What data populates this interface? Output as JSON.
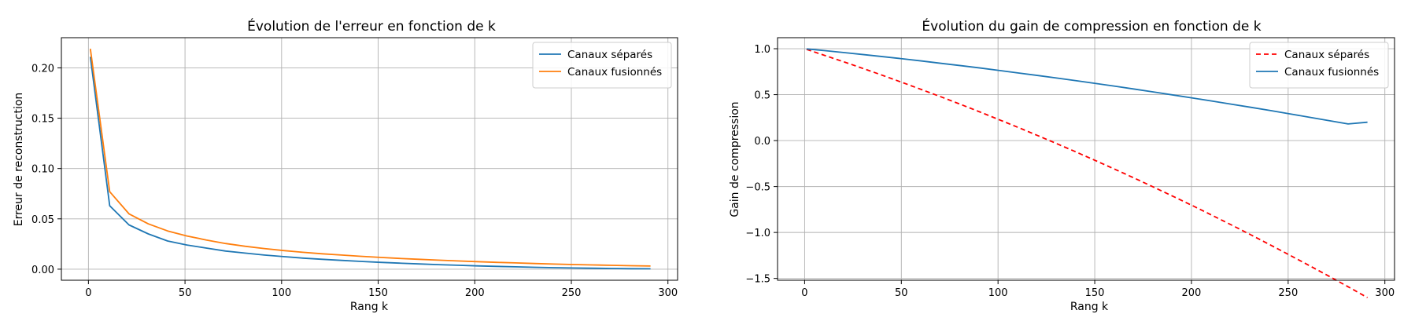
{
  "chart_data": [
    {
      "type": "line",
      "title": "Évolution de l'erreur en fonction de k",
      "xlabel": "Rang k",
      "ylabel": "Erreur de reconstruction",
      "xlim": [
        -14,
        305
      ],
      "ylim": [
        -0.011,
        0.23
      ],
      "xticks": [
        0,
        50,
        100,
        150,
        200,
        250,
        300
      ],
      "yticks": [
        0.0,
        0.05,
        0.1,
        0.15,
        0.2
      ],
      "ytick_labels": [
        "0.00",
        "0.05",
        "0.10",
        "0.15",
        "0.20"
      ],
      "grid": true,
      "legend": "top-right",
      "x": [
        1,
        11,
        21,
        31,
        41,
        51,
        61,
        71,
        81,
        91,
        101,
        111,
        121,
        131,
        141,
        151,
        161,
        171,
        181,
        191,
        201,
        211,
        221,
        231,
        241,
        251,
        261,
        271,
        281,
        291
      ],
      "series": [
        {
          "name": "Canaux séparés",
          "color": "#1f77b4",
          "dash": "",
          "values": [
            0.211,
            0.063,
            0.044,
            0.035,
            0.028,
            0.024,
            0.021,
            0.018,
            0.016,
            0.014,
            0.0125,
            0.011,
            0.0098,
            0.0087,
            0.0077,
            0.0068,
            0.006,
            0.0052,
            0.0045,
            0.0039,
            0.0033,
            0.0028,
            0.0023,
            0.0019,
            0.0015,
            0.0012,
            0.0009,
            0.0007,
            0.0005,
            0.0004
          ]
        },
        {
          "name": "Canaux fusionnés",
          "color": "#ff7f0e",
          "dash": "",
          "values": [
            0.219,
            0.077,
            0.055,
            0.045,
            0.038,
            0.033,
            0.029,
            0.0255,
            0.0228,
            0.0205,
            0.0185,
            0.0168,
            0.0153,
            0.014,
            0.0128,
            0.0117,
            0.0107,
            0.0098,
            0.009,
            0.0082,
            0.0075,
            0.0068,
            0.0062,
            0.0056,
            0.0051,
            0.0046,
            0.0042,
            0.0038,
            0.0034,
            0.0031
          ]
        }
      ]
    },
    {
      "type": "line",
      "title": "Évolution du gain de compression en fonction de k",
      "xlabel": "Rang k",
      "ylabel": "Gain de compression",
      "xlim": [
        -14,
        305
      ],
      "ylim": [
        -1.52,
        1.12
      ],
      "xticks": [
        0,
        50,
        100,
        150,
        200,
        250,
        300
      ],
      "yticks": [
        1.0,
        0.5,
        0.0,
        -0.5,
        -1.0,
        -1.5
      ],
      "ytick_labels": [
        "1.0",
        "0.5",
        "0.0",
        "−0.5",
        "−1.0",
        "−1.5"
      ],
      "grid": true,
      "legend": "top-right",
      "x": [
        1,
        11,
        21,
        31,
        41,
        51,
        61,
        71,
        81,
        91,
        101,
        111,
        121,
        131,
        141,
        151,
        161,
        171,
        181,
        191,
        201,
        211,
        221,
        231,
        241,
        251,
        261,
        271,
        281,
        291
      ],
      "series": [
        {
          "name": "Canaux séparés",
          "color": "#ff0000",
          "dash": "6,4",
          "values": [
            0.993,
            0.923,
            0.852,
            0.779,
            0.705,
            0.629,
            0.551,
            0.472,
            0.391,
            0.308,
            0.224,
            0.138,
            0.05,
            -0.039,
            -0.13,
            -0.223,
            -0.318,
            -0.414,
            -0.512,
            -0.612,
            -0.713,
            -0.817,
            -0.922,
            -1.029,
            -1.138,
            -1.249,
            -1.361,
            -1.475,
            -1.591,
            -1.709
          ]
        },
        {
          "name": "Canaux fusionnés",
          "color": "#1f77b4",
          "dash": "",
          "values": [
            0.998,
            0.978,
            0.957,
            0.935,
            0.912,
            0.889,
            0.865,
            0.84,
            0.815,
            0.789,
            0.762,
            0.735,
            0.707,
            0.679,
            0.65,
            0.62,
            0.59,
            0.559,
            0.527,
            0.495,
            0.462,
            0.429,
            0.395,
            0.361,
            0.326,
            0.29,
            0.254,
            0.218,
            0.181,
            0.2
          ]
        }
      ]
    }
  ]
}
